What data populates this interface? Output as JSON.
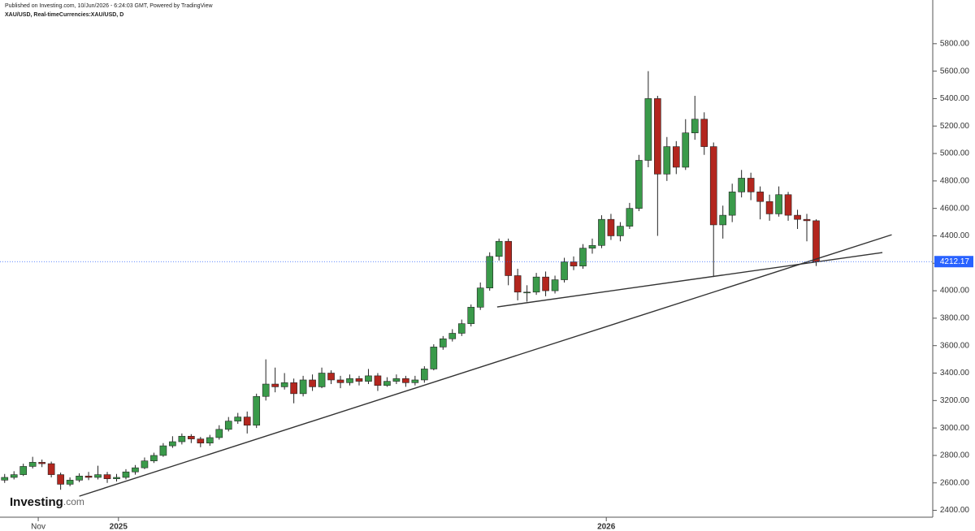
{
  "chart_data": {
    "type": "candlestick",
    "title": "Published on Investing.com, 10/Jun/2026 - 6:24:03 GMT, Powered by TradingView",
    "subtitle": "XAU/USD, Real-timeCurrencies:XAU/USD, D",
    "logo": {
      "name": "Investing",
      "suffix": ".com"
    },
    "up_color": "#3a9a4a",
    "down_color": "#b3261e",
    "line_color": "#333333",
    "price_color": "#2962ff",
    "xlim": [
      0,
      100
    ],
    "xticks": [
      {
        "value": 4.1,
        "label": "Nov"
      },
      {
        "value": 12.7,
        "label": "2025"
      },
      {
        "value": 65.0,
        "label": "2026"
      }
    ],
    "ylim": [
      2350,
      6000
    ],
    "yticks": [
      {
        "value": 2400,
        "label": "2400.00"
      },
      {
        "value": 2600,
        "label": "2600.00"
      },
      {
        "value": 2800,
        "label": "2800.00"
      },
      {
        "value": 3000,
        "label": "3000.00"
      },
      {
        "value": 3200,
        "label": "3200.00"
      },
      {
        "value": 3400,
        "label": "3400.00"
      },
      {
        "value": 3600,
        "label": "3600.00"
      },
      {
        "value": 3800,
        "label": "3800.00"
      },
      {
        "value": 4000,
        "label": "4000.00"
      },
      {
        "value": 4200,
        "label": "4200.00"
      },
      {
        "value": 4400,
        "label": "4400.00"
      },
      {
        "value": 4600,
        "label": "4600.00"
      },
      {
        "value": 4800,
        "label": "4800.00"
      },
      {
        "value": 5000,
        "label": "5000.00"
      },
      {
        "value": 5200,
        "label": "5200.00"
      },
      {
        "value": 5400,
        "label": "5400.00"
      },
      {
        "value": 5600,
        "label": "5600.00"
      },
      {
        "value": 5800,
        "label": "5800.00"
      }
    ],
    "last_price": 4212.17,
    "open": [
      2620,
      2640,
      2660,
      2720,
      2750,
      2740,
      2660,
      2590,
      2620,
      2650,
      2640,
      2660,
      2630,
      2640,
      2680,
      2710,
      2760,
      2800,
      2870,
      2900,
      2940,
      2920,
      2890,
      2930,
      2990,
      3050,
      3080,
      3020,
      3230,
      3320,
      3300,
      3330,
      3250,
      3350,
      3300,
      3400,
      3350,
      3330,
      3360,
      3340,
      3380,
      3310,
      3340,
      3360,
      3330,
      3350,
      3430,
      3590,
      3650,
      3690,
      3760,
      3880,
      4020,
      4250,
      4360,
      4110,
      3990,
      3990,
      4100,
      4000,
      4080,
      4210,
      4180,
      4310,
      4330,
      4520,
      4400,
      4470,
      4600,
      4950,
      5400,
      4850,
      5050,
      4900,
      5150,
      5250,
      5050,
      4480,
      4550,
      4720,
      4820,
      4720,
      4650,
      4560,
      4700,
      4550,
      4520,
      4510
    ],
    "high": [
      2665,
      2685,
      2740,
      2790,
      2770,
      2755,
      2675,
      2640,
      2670,
      2680,
      2725,
      2680,
      2665,
      2700,
      2730,
      2785,
      2820,
      2890,
      2940,
      2960,
      2955,
      2935,
      2950,
      3020,
      3080,
      3110,
      3120,
      3250,
      3500,
      3440,
      3400,
      3360,
      3380,
      3390,
      3440,
      3420,
      3380,
      3390,
      3380,
      3430,
      3400,
      3370,
      3390,
      3380,
      3380,
      3450,
      3610,
      3670,
      3720,
      3790,
      3900,
      4060,
      4280,
      4380,
      4380,
      4160,
      4040,
      4130,
      4140,
      4110,
      4240,
      4250,
      4340,
      4380,
      4550,
      4560,
      4500,
      4640,
      4990,
      5600,
      5420,
      5120,
      5090,
      5250,
      5420,
      5300,
      5080,
      4620,
      4780,
      4880,
      4860,
      4760,
      4700,
      4760,
      4720,
      4590,
      4560,
      4520
    ],
    "low": [
      2600,
      2625,
      2650,
      2705,
      2715,
      2640,
      2550,
      2575,
      2605,
      2620,
      2625,
      2600,
      2610,
      2625,
      2660,
      2700,
      2745,
      2790,
      2855,
      2880,
      2890,
      2860,
      2870,
      2915,
      2975,
      3030,
      2960,
      3000,
      3200,
      3260,
      3280,
      3180,
      3230,
      3270,
      3290,
      3320,
      3290,
      3310,
      3310,
      3320,
      3270,
      3300,
      3320,
      3300,
      3310,
      3330,
      3420,
      3570,
      3630,
      3670,
      3740,
      3860,
      4000,
      4220,
      4040,
      3930,
      3920,
      3970,
      3960,
      3980,
      4060,
      4150,
      4160,
      4270,
      4310,
      4370,
      4360,
      4450,
      4580,
      4900,
      4400,
      4800,
      4850,
      4880,
      5100,
      4990,
      4100,
      4380,
      4500,
      4680,
      4660,
      4520,
      4510,
      4540,
      4510,
      4450,
      4360,
      4180
    ],
    "close": [
      2640,
      2660,
      2720,
      2750,
      2740,
      2660,
      2590,
      2620,
      2650,
      2640,
      2660,
      2630,
      2640,
      2680,
      2710,
      2760,
      2800,
      2870,
      2900,
      2940,
      2920,
      2890,
      2930,
      2990,
      3050,
      3080,
      3020,
      3230,
      3320,
      3300,
      3330,
      3250,
      3350,
      3300,
      3400,
      3350,
      3330,
      3360,
      3340,
      3380,
      3310,
      3340,
      3360,
      3330,
      3350,
      3430,
      3590,
      3650,
      3690,
      3760,
      3880,
      4020,
      4250,
      4360,
      4110,
      3990,
      3990,
      4100,
      4000,
      4080,
      4210,
      4180,
      4310,
      4330,
      4520,
      4400,
      4470,
      4600,
      4950,
      5400,
      4850,
      5050,
      4900,
      5150,
      5250,
      5050,
      4480,
      4550,
      4720,
      4820,
      4720,
      4650,
      4560,
      4700,
      4550,
      4520,
      4510,
      4212.17
    ],
    "trendlines": [
      {
        "x": [
          8.5,
          95.6
        ],
        "y": [
          2503,
          4408
        ]
      },
      {
        "x": [
          53.3,
          94.6
        ],
        "y": [
          3882,
          4278
        ]
      }
    ]
  }
}
